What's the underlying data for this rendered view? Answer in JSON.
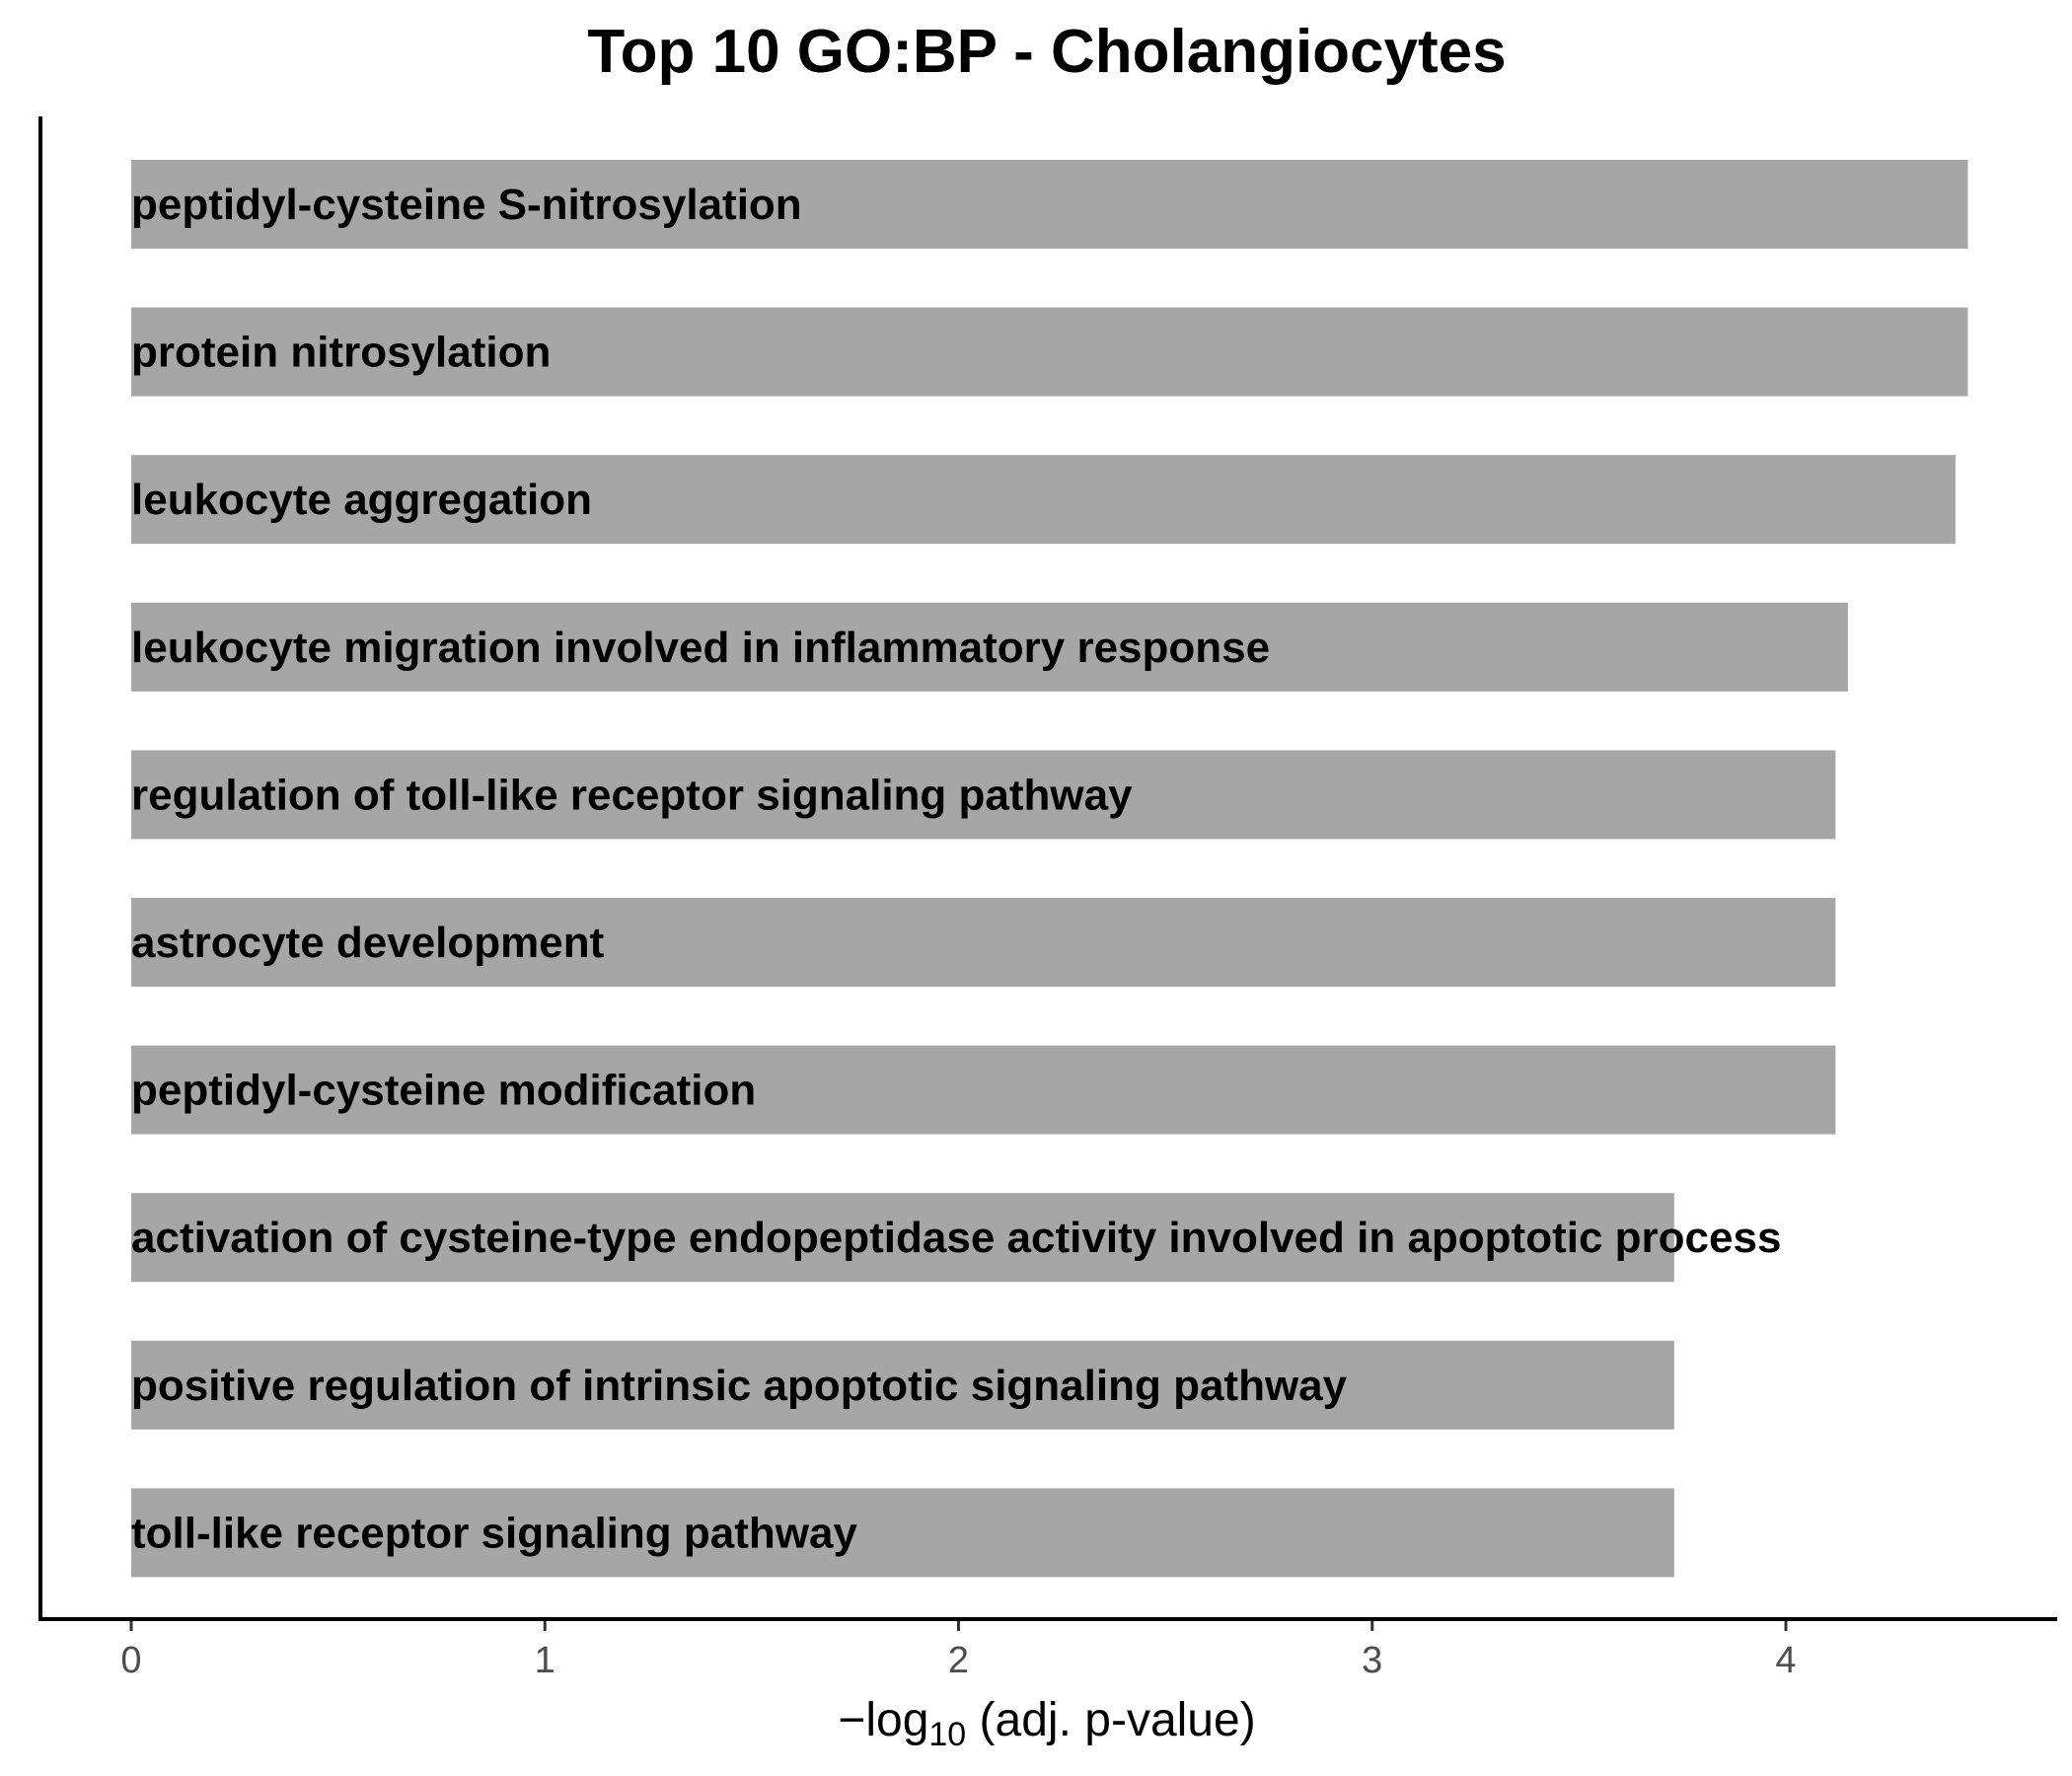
{
  "chart_data": {
    "type": "bar",
    "orientation": "horizontal",
    "title": "Top 10 GO:BP - Cholangiocytes",
    "xlabel": "−log",
    "xlabel_subscript": "10",
    "xlabel_suffix": " (adj. p-value)",
    "ylabel": "",
    "xlim": [
      -0.22,
      4.66
    ],
    "xticks": [
      0,
      1,
      2,
      3,
      4
    ],
    "grid": false,
    "bar_color": "#a6a6a6",
    "categories": [
      "peptidyl-cysteine S-nitrosylation",
      "protein nitrosylation",
      "leukocyte aggregation",
      "leukocyte migration involved in inflammatory response",
      "regulation of toll-like receptor signaling pathway",
      "astrocyte development",
      "peptidyl-cysteine modification",
      "activation of cysteine-type endopeptidase activity involved in apoptotic process",
      "positive regulation of intrinsic apoptotic signaling pathway",
      "toll-like receptor signaling pathway"
    ],
    "values": [
      4.44,
      4.44,
      4.41,
      4.15,
      4.12,
      4.12,
      4.12,
      3.73,
      3.73,
      3.73
    ]
  }
}
